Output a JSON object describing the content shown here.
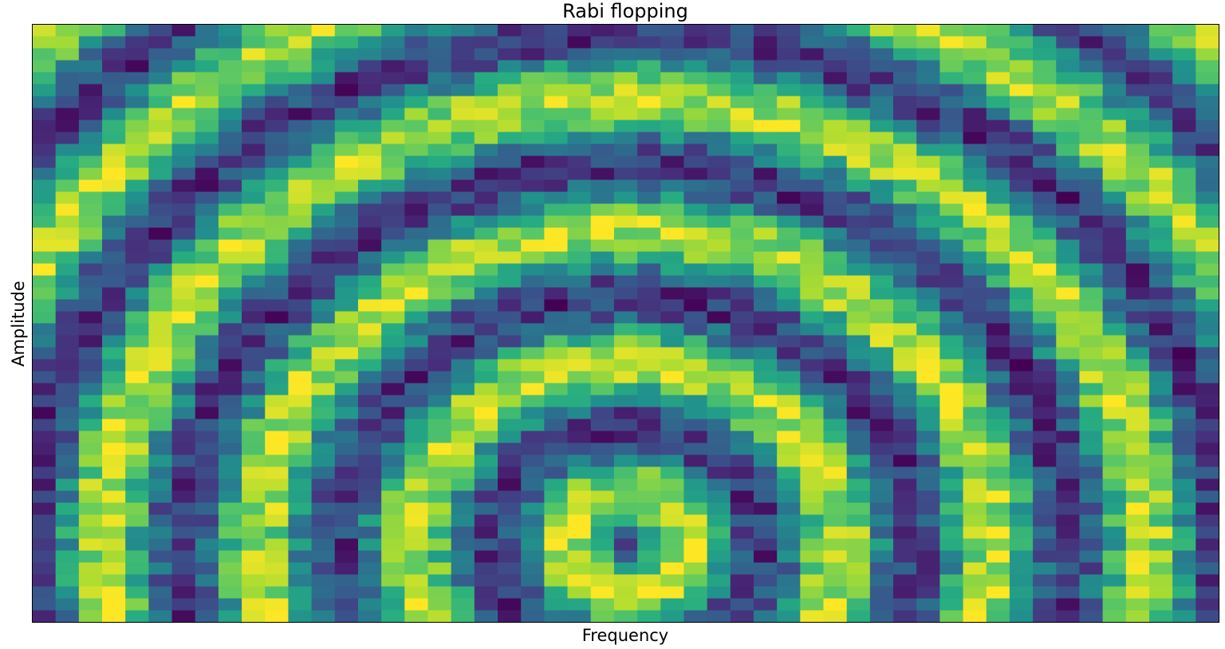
{
  "chart_data": {
    "type": "heatmap",
    "title": "Rabi flopping",
    "xlabel": "Frequency",
    "ylabel": "Amplitude",
    "x_ticks": [],
    "y_ticks": [],
    "colormap": "viridis",
    "grid": false,
    "legend": "none",
    "n_cols": 51,
    "n_rows": 50,
    "center_col": 25,
    "bright_row": 43,
    "noise": 0.16,
    "pattern": "z = clip(0.5 + 0.5*cos(sqrt((col-center_col)^2 + ((row-bright_row)*0.6)^2)*0.95 - 2.4) + noise, 0, 1)"
  }
}
